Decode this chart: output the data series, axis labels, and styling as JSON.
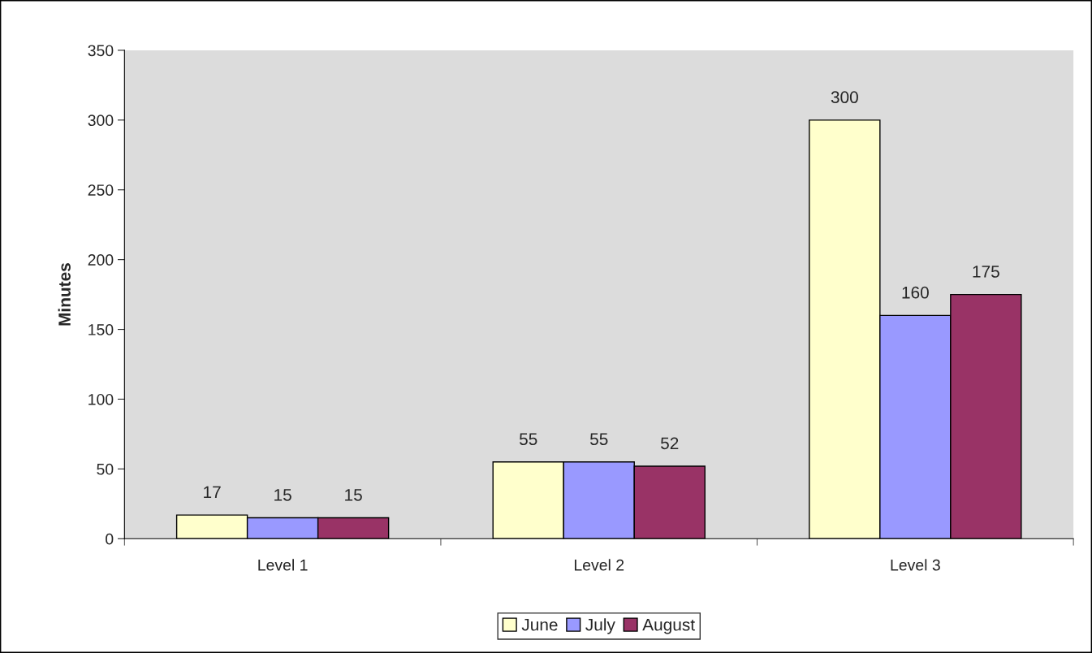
{
  "chart_data": {
    "type": "bar",
    "ylabel": "Minutes",
    "categories": [
      "Level 1",
      "Level 2",
      "Level 3"
    ],
    "series": [
      {
        "name": "June",
        "color": "#ffffcc",
        "values": [
          17,
          55,
          300
        ]
      },
      {
        "name": "July",
        "color": "#9999ff",
        "values": [
          15,
          55,
          160
        ]
      },
      {
        "name": "August",
        "color": "#993366",
        "values": [
          15,
          52,
          175
        ]
      }
    ],
    "ylim": [
      0,
      350
    ],
    "yticks": [
      0,
      50,
      100,
      150,
      200,
      250,
      300,
      350
    ],
    "data_labels": true,
    "grid": false,
    "legend": "bottom"
  }
}
